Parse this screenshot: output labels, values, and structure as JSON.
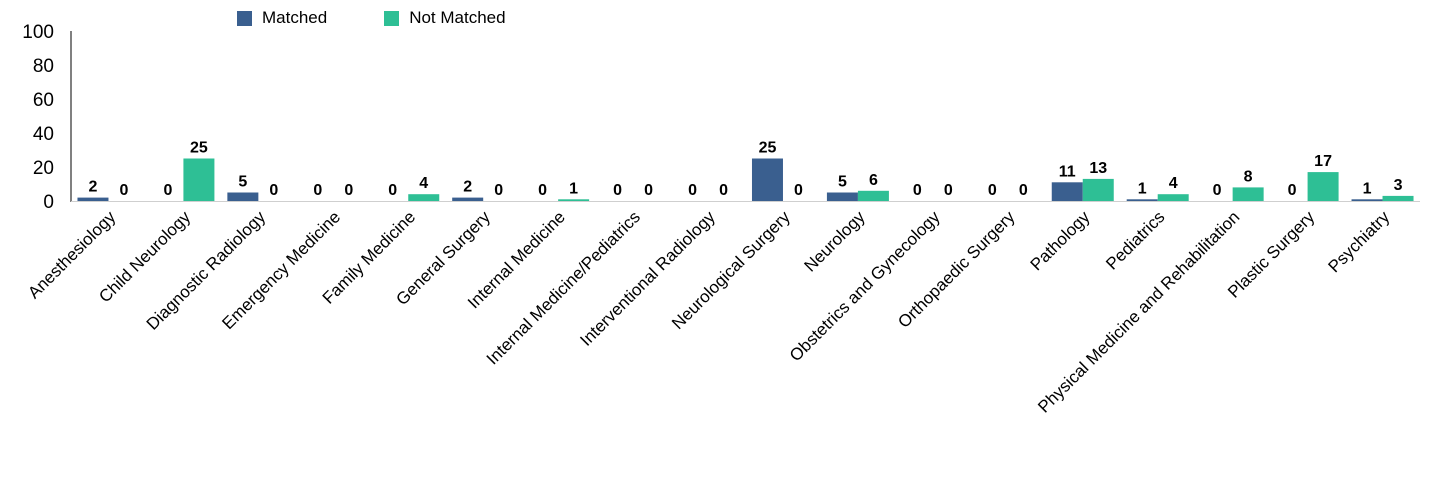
{
  "chart_data": {
    "type": "bar",
    "categories": [
      "Anesthesiology",
      "Child Neurology",
      "Diagnostic Radiology",
      "Emergency Medicine",
      "Family Medicine",
      "General Surgery",
      "Internal Medicine",
      "Internal Medicine/Pediatrics",
      "Interventional Radiology",
      "Neurological Surgery",
      "Neurology",
      "Obstetrics and Gynecology",
      "Orthopaedic Surgery",
      "Pathology",
      "Pediatrics",
      "Physical Medicine and Rehabilitation",
      "Plastic Surgery",
      "Psychiatry"
    ],
    "series": [
      {
        "name": "Matched",
        "color": "#3A5F8F",
        "values": [
          2,
          0,
          5,
          0,
          0,
          2,
          0,
          0,
          0,
          25,
          5,
          0,
          0,
          11,
          1,
          0,
          0,
          1
        ]
      },
      {
        "name": "Not Matched",
        "color": "#2EBF95",
        "values": [
          0,
          25,
          0,
          0,
          4,
          0,
          1,
          0,
          0,
          0,
          6,
          0,
          0,
          13,
          4,
          8,
          17,
          3
        ]
      }
    ],
    "ylim": [
      0,
      100
    ],
    "yticks": [
      "0",
      "20",
      "40",
      "60",
      "80",
      "100"
    ],
    "legend_position": "top-left",
    "grid": false,
    "data_labels": true
  }
}
